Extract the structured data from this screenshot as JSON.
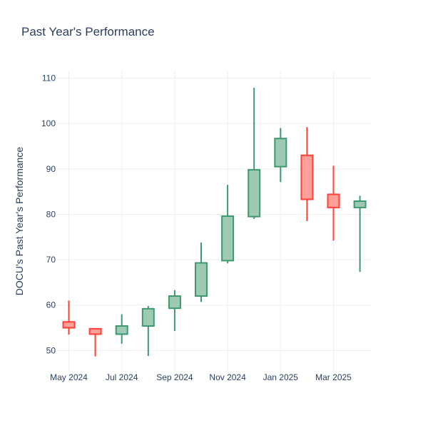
{
  "chart_data": {
    "type": "candlestick",
    "title": "Past Year's Performance",
    "xlabel": "",
    "ylabel": "DOCU's Past Year's Performance",
    "ylim": [
      45.5,
      111.5
    ],
    "yticks": [
      50,
      60,
      70,
      80,
      90,
      100,
      110
    ],
    "xticks": [
      {
        "label": "May 2024",
        "month_index": 0
      },
      {
        "label": "Jul 2024",
        "month_index": 2
      },
      {
        "label": "Sep 2024",
        "month_index": 4
      },
      {
        "label": "Nov 2024",
        "month_index": 6
      },
      {
        "label": "Jan 2025",
        "month_index": 8
      },
      {
        "label": "Mar 2025",
        "month_index": 10
      }
    ],
    "colors": {
      "increasing_line": "#3d9970",
      "increasing_fill": "#9ecab4",
      "decreasing_line": "#ff4136",
      "decreasing_fill": "#ff9f9a",
      "grid": "#eeeeee",
      "text": "#2a3f5f"
    },
    "candles": [
      {
        "month": "2024-05",
        "open": 56.3,
        "high": 61.0,
        "low": 53.5,
        "close": 55.0
      },
      {
        "month": "2024-06",
        "open": 54.8,
        "high": 54.8,
        "low": 48.7,
        "close": 53.6
      },
      {
        "month": "2024-07",
        "open": 53.6,
        "high": 58.0,
        "low": 51.5,
        "close": 55.4
      },
      {
        "month": "2024-08",
        "open": 55.4,
        "high": 59.8,
        "low": 48.8,
        "close": 59.2
      },
      {
        "month": "2024-09",
        "open": 59.3,
        "high": 63.3,
        "low": 54.3,
        "close": 62.0
      },
      {
        "month": "2024-10",
        "open": 62.0,
        "high": 73.8,
        "low": 60.7,
        "close": 69.3
      },
      {
        "month": "2024-11",
        "open": 69.8,
        "high": 86.5,
        "low": 69.2,
        "close": 79.6
      },
      {
        "month": "2024-12",
        "open": 79.5,
        "high": 107.9,
        "low": 79.0,
        "close": 89.8
      },
      {
        "month": "2025-01",
        "open": 90.5,
        "high": 99.0,
        "low": 87.1,
        "close": 96.7
      },
      {
        "month": "2025-02",
        "open": 93.0,
        "high": 99.2,
        "low": 78.5,
        "close": 83.3
      },
      {
        "month": "2025-03",
        "open": 84.4,
        "high": 90.7,
        "low": 74.2,
        "close": 81.5
      },
      {
        "month": "2025-04",
        "open": 81.5,
        "high": 84.1,
        "low": 67.3,
        "close": 82.9
      }
    ]
  }
}
